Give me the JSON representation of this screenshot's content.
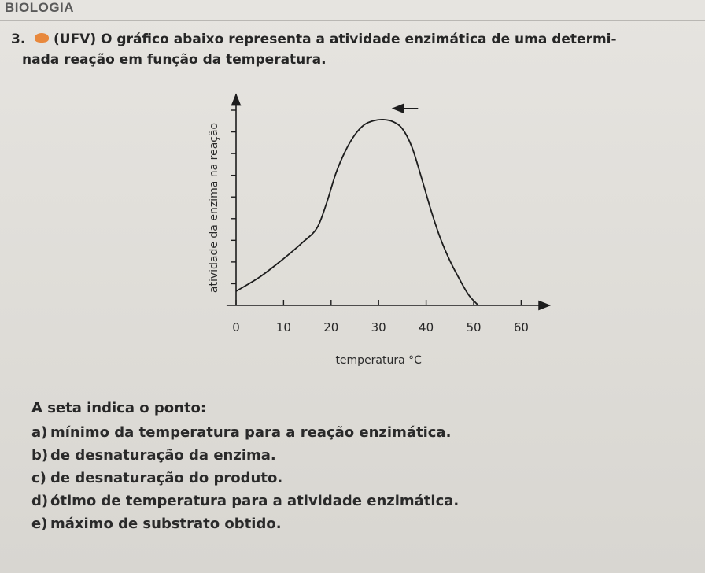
{
  "section": {
    "title": "BIOLOGIA"
  },
  "question": {
    "number": "3.",
    "badge_icon": "orange-smiley-icon",
    "line1": "(UFV) O gráfico abaixo representa a atividade enzimática de uma determi-",
    "line2": "nada reação em função da temperatura.",
    "prompt": "A seta indica o ponto:",
    "options": [
      {
        "letter": "a)",
        "text": "mínimo da temperatura para a reação enzimática."
      },
      {
        "letter": "b)",
        "text": "de desnaturação da enzima."
      },
      {
        "letter": "c)",
        "text": "de desnaturação do produto."
      },
      {
        "letter": "d)",
        "text": "ótimo de temperatura para a atividade enzimática."
      },
      {
        "letter": "e)",
        "text": "máximo de substrato obtido."
      }
    ]
  },
  "chart_data": {
    "type": "line",
    "title": "",
    "xlabel": "temperatura °C",
    "ylabel": "atividade da enzima na reação",
    "x_ticks": [
      0,
      10,
      20,
      30,
      40,
      50,
      60
    ],
    "xlim": [
      -2,
      66
    ],
    "ylim": [
      0,
      10
    ],
    "y_tick_count": 9,
    "y_tick_labels_shown": false,
    "grid": false,
    "series": [
      {
        "x": [
          0,
          5,
          10,
          14,
          17,
          19,
          21,
          23,
          25,
          27,
          29,
          31,
          33,
          35,
          37,
          39,
          41,
          43,
          45,
          47,
          49,
          51
        ],
        "y": [
          0.7,
          1.4,
          2.3,
          3.1,
          3.8,
          5.0,
          6.5,
          7.6,
          8.4,
          8.9,
          9.1,
          9.15,
          9.05,
          8.7,
          7.8,
          6.3,
          4.7,
          3.3,
          2.2,
          1.3,
          0.5,
          0.0
        ]
      }
    ],
    "annotation": {
      "type": "arrow",
      "direction": "left",
      "at_x": 33,
      "at_y": 9.7
    }
  }
}
